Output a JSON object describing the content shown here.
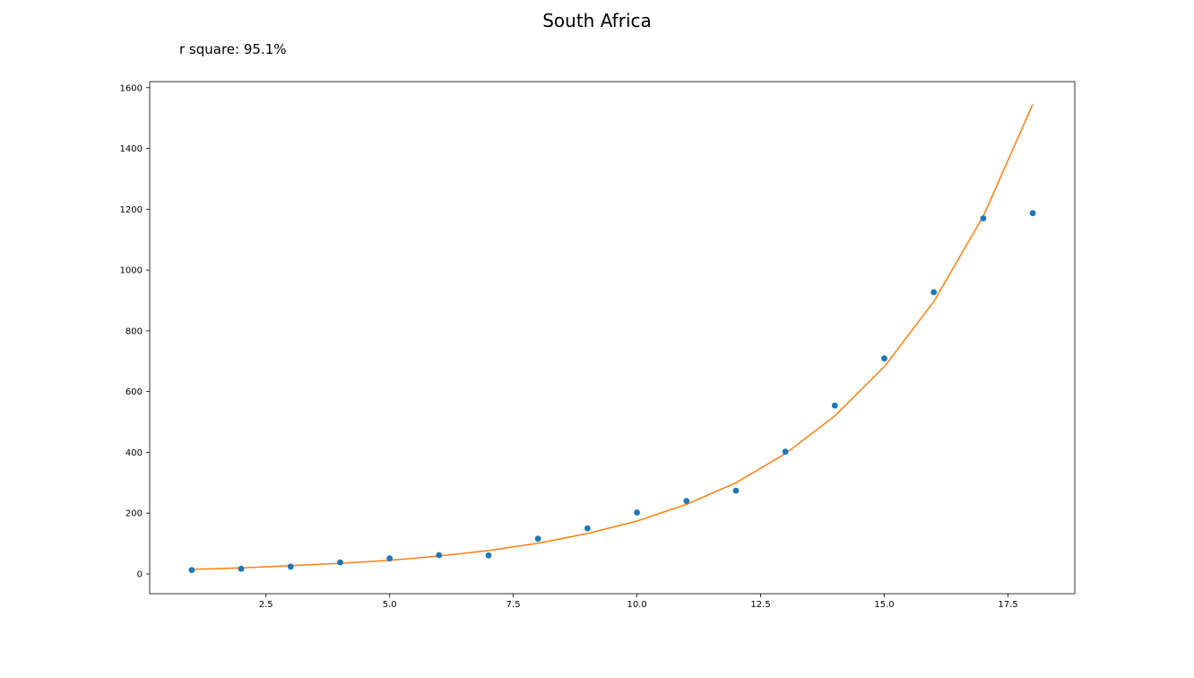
{
  "chart_data": {
    "type": "scatter",
    "title": "South Africa",
    "annotation": "r square: 95.1%",
    "xlabel": "",
    "ylabel": "",
    "xlim": [
      0.15,
      18.85
    ],
    "ylim": [
      -65,
      1620
    ],
    "x_ticks": [
      2.5,
      5.0,
      7.5,
      10.0,
      12.5,
      15.0,
      17.5
    ],
    "x_tick_labels": [
      "2.5",
      "5.0",
      "7.5",
      "10.0",
      "12.5",
      "15.0",
      "17.5"
    ],
    "y_ticks": [
      0,
      200,
      400,
      600,
      800,
      1000,
      1200,
      1400,
      1600
    ],
    "y_tick_labels": [
      "0",
      "200",
      "400",
      "600",
      "800",
      "1000",
      "1200",
      "1400",
      "1600"
    ],
    "grid": false,
    "series": [
      {
        "kind": "scatter",
        "color": "#1f77b4",
        "x": [
          1,
          2,
          3,
          4,
          5,
          6,
          7,
          8,
          9,
          10,
          11,
          12,
          13,
          14,
          15,
          16,
          17,
          18
        ],
        "y": [
          13,
          17,
          24,
          38,
          51,
          62,
          61,
          116,
          150,
          202,
          240,
          274,
          402,
          554,
          709,
          927,
          1170,
          1187
        ]
      },
      {
        "kind": "line",
        "color": "#ff7f0e",
        "x": [
          1,
          2,
          3,
          4,
          5,
          6,
          7,
          8,
          9,
          10,
          11,
          12,
          13,
          14,
          15,
          16,
          17,
          18
        ],
        "y": [
          15,
          20,
          27,
          35,
          45,
          59,
          77,
          101,
          133,
          174,
          229,
          300,
          396,
          520,
          682,
          896,
          1177,
          1545
        ]
      }
    ]
  }
}
